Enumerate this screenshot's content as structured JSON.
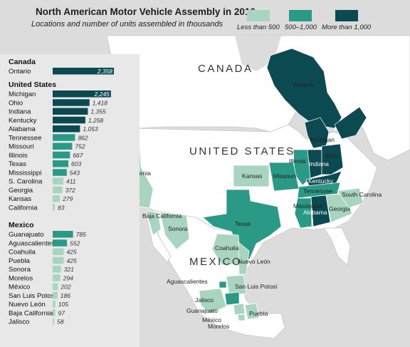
{
  "title": "North American Motor Vehicle Assembly in 2016",
  "subtitle": "Locations and number of units assembled in thousands",
  "legend": [
    {
      "label": "Less than 500",
      "color": "#a9d5c0"
    },
    {
      "label": "500–1,000",
      "color": "#2a9a86"
    },
    {
      "label": "More than 1,000",
      "color": "#0c4a52"
    }
  ],
  "colors": {
    "low": "#a9d5c0",
    "mid": "#2a9a86",
    "high": "#0c4a52",
    "land": "#ffffff",
    "water": "#dcdcdc"
  },
  "map_labels": {
    "canada": "CANADA",
    "us": "UNITED STATES",
    "mexico": "MEXICO",
    "regions": [
      "Ontario",
      "Michigan",
      "Ohio",
      "Indiana",
      "Illinois",
      "Kentucky",
      "Tennessee",
      "Missouri",
      "Kansas",
      "California",
      "Texas",
      "Mississippi",
      "Alabama",
      "Georgia",
      "South Carolina",
      "Baja California",
      "Sonora",
      "Coahuila",
      "Nuevo León",
      "San Luis Potosí",
      "Aguascalientes",
      "Jalisco",
      "Guanajuato",
      "México",
      "Morelos",
      "Puebla"
    ]
  },
  "chart_data": {
    "type": "bar",
    "orientation": "horizontal",
    "title": "North American Motor Vehicle Assembly in 2016",
    "subtitle": "Locations and number of units assembled in thousands",
    "groups": [
      {
        "name": "Canada",
        "items": [
          {
            "label": "Ontario",
            "value": 2358,
            "value_label": "2,358",
            "class": "high"
          }
        ]
      },
      {
        "name": "United States",
        "items": [
          {
            "label": "Michigan",
            "value": 2245,
            "value_label": "2,245",
            "class": "high"
          },
          {
            "label": "Ohio",
            "value": 1418,
            "value_label": "1,418",
            "class": "high"
          },
          {
            "label": "Indiana",
            "value": 1355,
            "value_label": "1,355",
            "class": "high"
          },
          {
            "label": "Kentucky",
            "value": 1258,
            "value_label": "1,258",
            "class": "high"
          },
          {
            "label": "Alabama",
            "value": 1053,
            "value_label": "1,053",
            "class": "high"
          },
          {
            "label": "Tennessee",
            "value": 862,
            "value_label": "862",
            "class": "mid"
          },
          {
            "label": "Missouri",
            "value": 752,
            "value_label": "752",
            "class": "mid"
          },
          {
            "label": "Illinois",
            "value": 667,
            "value_label": "667",
            "class": "mid"
          },
          {
            "label": "Texas",
            "value": 603,
            "value_label": "603",
            "class": "mid"
          },
          {
            "label": "Mississippi",
            "value": 543,
            "value_label": "543",
            "class": "mid"
          },
          {
            "label": "S. Carolina",
            "value": 411,
            "value_label": "411",
            "class": "low"
          },
          {
            "label": "Georgia",
            "value": 372,
            "value_label": "372",
            "class": "low"
          },
          {
            "label": "Kansas",
            "value": 279,
            "value_label": "279",
            "class": "low"
          },
          {
            "label": "California",
            "value": 83,
            "value_label": "83",
            "class": "low"
          }
        ]
      },
      {
        "name": "Mexico",
        "items": [
          {
            "label": "Guanajuato",
            "value": 785,
            "value_label": "785",
            "class": "mid"
          },
          {
            "label": "Aguascalientes",
            "value": 552,
            "value_label": "552",
            "class": "mid"
          },
          {
            "label": "Coahuila",
            "value": 425,
            "value_label": "425",
            "class": "low"
          },
          {
            "label": "Puebla",
            "value": 425,
            "value_label": "425",
            "class": "low"
          },
          {
            "label": "Sonora",
            "value": 321,
            "value_label": "321",
            "class": "low"
          },
          {
            "label": "Morelos",
            "value": 294,
            "value_label": "294",
            "class": "low"
          },
          {
            "label": "México",
            "value": 202,
            "value_label": "202",
            "class": "low"
          },
          {
            "label": "San Luis Potosí",
            "value": 186,
            "value_label": "186",
            "class": "low"
          },
          {
            "label": "Nuevo León",
            "value": 105,
            "value_label": "105",
            "class": "low"
          },
          {
            "label": "Baja California",
            "value": 97,
            "value_label": "97",
            "class": "low"
          },
          {
            "label": "Jalisco",
            "value": 58,
            "value_label": "58",
            "class": "low"
          }
        ]
      }
    ],
    "legend_placement": "top-right",
    "grid": false
  }
}
